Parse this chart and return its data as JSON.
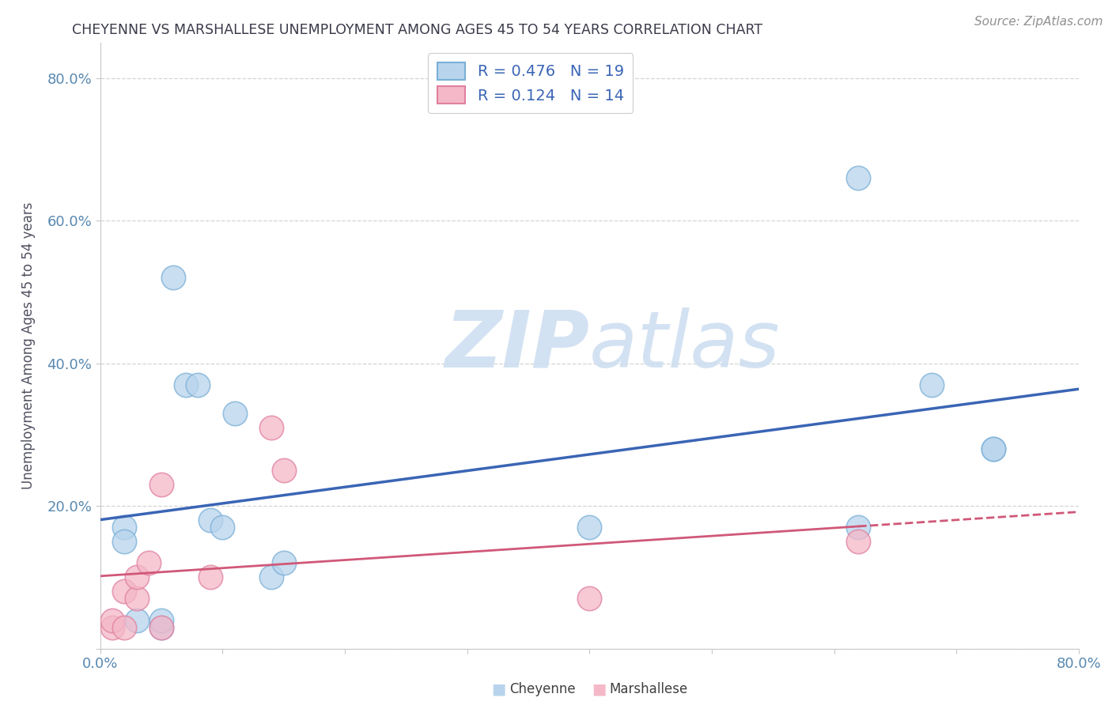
{
  "title": "CHEYENNE VS MARSHALLESE UNEMPLOYMENT AMONG AGES 45 TO 54 YEARS CORRELATION CHART",
  "source": "Source: ZipAtlas.com",
  "ylabel": "Unemployment Among Ages 45 to 54 years",
  "xlim": [
    0.0,
    0.8
  ],
  "ylim": [
    0.0,
    0.85
  ],
  "xtick_positions": [
    0.0,
    0.1,
    0.2,
    0.3,
    0.4,
    0.5,
    0.6,
    0.7,
    0.8
  ],
  "xticklabels": [
    "0.0%",
    "",
    "",
    "",
    "",
    "",
    "",
    "",
    "80.0%"
  ],
  "ytick_positions": [
    0.0,
    0.2,
    0.4,
    0.6,
    0.8
  ],
  "yticklabels": [
    "",
    "20.0%",
    "40.0%",
    "60.0%",
    "80.0%"
  ],
  "cheyenne_face_color": "#b8d4ec",
  "cheyenne_edge_color": "#7ab0d8",
  "marshallese_face_color": "#f4b8c8",
  "marshallese_edge_color": "#e080a0",
  "cheyenne_line_color": "#3a65b5",
  "marshallese_line_color": "#d05878",
  "legend_text_color": "#3a65b5",
  "cheyenne_R": "0.476",
  "cheyenne_N": "19",
  "marshallese_R": "0.124",
  "marshallese_N": "14",
  "cheyenne_x": [
    0.02,
    0.02,
    0.03,
    0.05,
    0.05,
    0.06,
    0.07,
    0.08,
    0.09,
    0.1,
    0.11,
    0.14,
    0.15,
    0.4,
    0.62,
    0.62,
    0.68,
    0.73,
    0.73
  ],
  "cheyenne_y": [
    0.17,
    0.15,
    0.04,
    0.03,
    0.04,
    0.52,
    0.37,
    0.37,
    0.18,
    0.17,
    0.33,
    0.1,
    0.12,
    0.17,
    0.66,
    0.17,
    0.37,
    0.28,
    0.28
  ],
  "marshallese_x": [
    0.01,
    0.01,
    0.02,
    0.02,
    0.03,
    0.03,
    0.04,
    0.05,
    0.05,
    0.09,
    0.14,
    0.15,
    0.4,
    0.62
  ],
  "marshallese_y": [
    0.03,
    0.04,
    0.03,
    0.08,
    0.07,
    0.1,
    0.12,
    0.03,
    0.23,
    0.1,
    0.31,
    0.25,
    0.07,
    0.15
  ],
  "watermark_zip": "ZIP",
  "watermark_atlas": "atlas",
  "watermark_color_zip": "#c8ddf0",
  "watermark_color_atlas": "#c8ddf0",
  "background_color": "#ffffff",
  "grid_color": "#d0d0d0",
  "title_color": "#3a3a4a",
  "axis_label_color": "#505060",
  "tick_color": "#5888b0",
  "bottom_legend_cheyenne": "Cheyenne",
  "bottom_legend_marshallese": "Marshallese"
}
